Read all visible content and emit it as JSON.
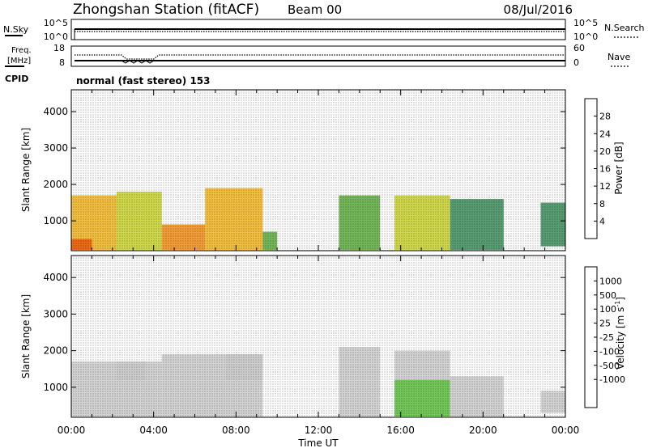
{
  "header": {
    "title": "Zhongshan Station (fitACF)",
    "beam": "Beam 00",
    "date": "08/Jul/2016"
  },
  "summary": {
    "nsky_label": "N.Sky",
    "nsearch_label": "N.Search",
    "freq_label_1": "Freq.",
    "freq_label_2": "[MHz]",
    "nave_label": "Nave",
    "cpid_label": "CPID",
    "cpid_text": "normal (fast stereo) 153",
    "nsky_tick_top": "10^5",
    "nsky_tick_bottom": "10^0",
    "nsearch_tick_top": "10^5",
    "nsearch_tick_bottom": "10^0",
    "freq_tick_top": "18",
    "freq_tick_bottom": "8",
    "nave_tick_top": "60",
    "nave_tick_bottom": "0"
  },
  "axes": {
    "ylabel": "Slant Range [km]",
    "xlabel": "Time UT",
    "yticks": [
      "4000",
      "3000",
      "2000",
      "1000"
    ],
    "xticks": [
      "00:00",
      "04:00",
      "08:00",
      "12:00",
      "16:00",
      "20:00",
      "00:00"
    ]
  },
  "colorbars": {
    "power_label": "Power [dB]",
    "power_ticks": [
      "28",
      "24",
      "20",
      "16",
      "12",
      "8",
      "4"
    ],
    "velocity_label": "Velocity [m s",
    "velocity_superscript": "-1",
    "velocity_label_end": "]",
    "velocity_ticks": [
      "1000",
      "500",
      "100",
      "25",
      "-25",
      "-100",
      "-500",
      "-1000"
    ]
  },
  "colors": {
    "power_scale": [
      "#0a14e6",
      "#1e5aa0",
      "#3c8c5a",
      "#5aaa3c",
      "#c8d22d",
      "#f0b41e",
      "#f08c14",
      "#eb5a0f",
      "#dc1e14"
    ],
    "velocity_scale": [
      "#1e50c8",
      "#1e64aa",
      "#2d8c5a",
      "#5abe3c",
      "#cccccc",
      "#cccccc",
      "#f5a01e",
      "#f07814",
      "#e64614",
      "#dc1e14"
    ]
  },
  "chart_data": [
    {
      "type": "heatmap",
      "title": "Power [dB]",
      "xlabel": "Time UT",
      "ylabel": "Slant Range [km]",
      "x_range_hours": [
        0,
        24
      ],
      "ylim": [
        180,
        4600
      ],
      "colorbar": {
        "min": 0,
        "max": 32,
        "ticks": [
          4,
          8,
          12,
          16,
          20,
          24,
          28
        ]
      },
      "echo_regions": [
        {
          "t0": 0.0,
          "t1": 2.2,
          "r0": 200,
          "r1": 1700,
          "value": 20
        },
        {
          "t0": 0.0,
          "t1": 1.0,
          "r0": 200,
          "r1": 500,
          "value": 28
        },
        {
          "t0": 2.2,
          "t1": 4.4,
          "r0": 200,
          "r1": 1800,
          "value": 16
        },
        {
          "t0": 4.4,
          "t1": 6.5,
          "r0": 200,
          "r1": 900,
          "value": 22
        },
        {
          "t0": 6.5,
          "t1": 9.3,
          "r0": 200,
          "r1": 1900,
          "value": 18
        },
        {
          "t0": 9.3,
          "t1": 10.0,
          "r0": 200,
          "r1": 700,
          "value": 12
        },
        {
          "t0": 13.0,
          "t1": 15.0,
          "r0": 200,
          "r1": 1700,
          "value": 14
        },
        {
          "t0": 15.7,
          "t1": 18.4,
          "r0": 200,
          "r1": 1700,
          "value": 16
        },
        {
          "t0": 18.4,
          "t1": 21.0,
          "r0": 200,
          "r1": 1600,
          "value": 10
        },
        {
          "t0": 22.8,
          "t1": 24.0,
          "r0": 300,
          "r1": 1500,
          "value": 8
        }
      ]
    },
    {
      "type": "heatmap",
      "title": "Velocity [m s-1]",
      "xlabel": "Time UT",
      "ylabel": "Slant Range [km]",
      "x_range_hours": [
        0,
        24
      ],
      "ylim": [
        180,
        4600
      ],
      "colorbar": {
        "min": -1000,
        "max": 1000,
        "ticks": [
          -1000,
          -500,
          -100,
          -25,
          25,
          100,
          500,
          1000
        ]
      },
      "echo_regions": [
        {
          "t0": 0.0,
          "t1": 4.4,
          "r0": 200,
          "r1": 1700,
          "value": -100
        },
        {
          "t0": 4.4,
          "t1": 9.3,
          "r0": 200,
          "r1": 1900,
          "value": -100
        },
        {
          "t0": 2.2,
          "t1": 3.6,
          "r0": 1200,
          "r1": 1700,
          "value": 0
        },
        {
          "t0": 7.5,
          "t1": 9.3,
          "r0": 1200,
          "r1": 1900,
          "value": 0
        },
        {
          "t0": 13.0,
          "t1": 15.0,
          "r0": 1200,
          "r1": 2100,
          "value": 0
        },
        {
          "t0": 13.0,
          "t1": 15.0,
          "r0": 200,
          "r1": 1200,
          "value": -100
        },
        {
          "t0": 15.7,
          "t1": 18.4,
          "r0": 1200,
          "r1": 2000,
          "value": 0
        },
        {
          "t0": 15.7,
          "t1": 18.4,
          "r0": 200,
          "r1": 1200,
          "value": -300
        },
        {
          "t0": 18.4,
          "t1": 21.0,
          "r0": 200,
          "r1": 1300,
          "value": 100
        },
        {
          "t0": 22.8,
          "t1": 24.0,
          "r0": 300,
          "r1": 900,
          "value": 100
        }
      ]
    }
  ]
}
